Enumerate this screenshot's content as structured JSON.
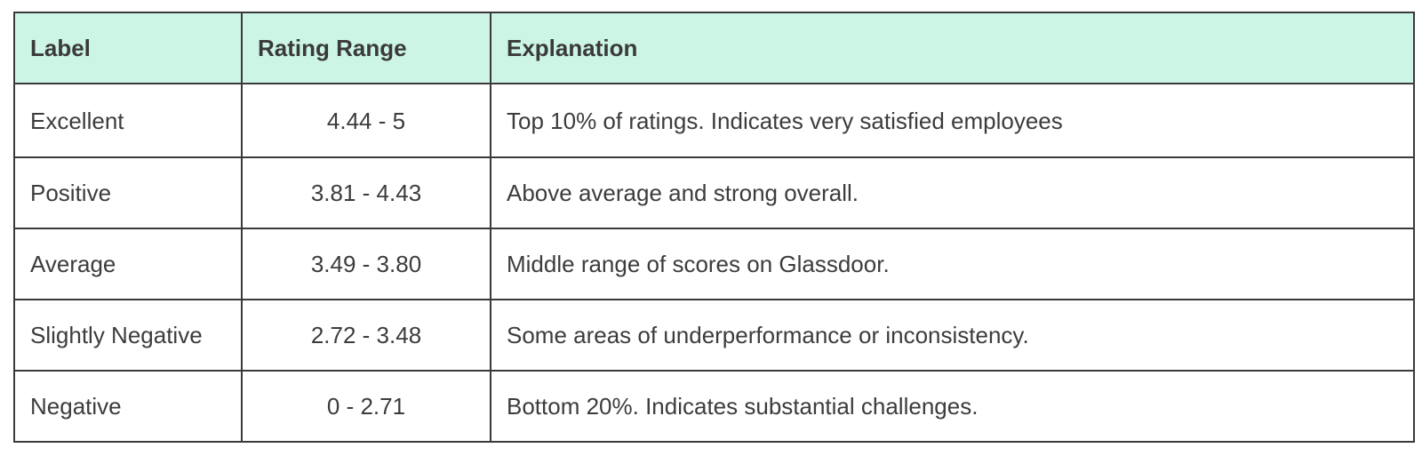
{
  "table": {
    "headers": [
      "Label",
      "Rating Range",
      "Explanation"
    ],
    "rows": [
      {
        "label": "Excellent",
        "range": "4.44 - 5",
        "explanation": "Top 10% of ratings. Indicates very satisfied employees"
      },
      {
        "label": "Positive",
        "range": "3.81 - 4.43",
        "explanation": "Above average and strong overall."
      },
      {
        "label": "Average",
        "range": "3.49 - 3.80",
        "explanation": "Middle range of scores on Glassdoor."
      },
      {
        "label": "Slightly Negative",
        "range": "2.72 - 3.48",
        "explanation": "Some areas of underperformance or inconsistency."
      },
      {
        "label": "Negative",
        "range": "0 - 2.71",
        "explanation": "Bottom 20%. Indicates substantial challenges."
      }
    ]
  },
  "colors": {
    "header_background": "#cdf5e5",
    "border": "#3a3a3a",
    "text": "#3c3c3c"
  }
}
